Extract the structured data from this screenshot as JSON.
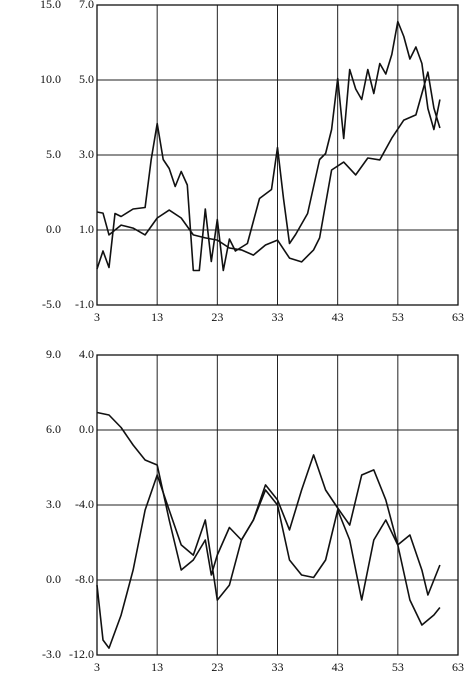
{
  "chart_data": [
    {
      "type": "line",
      "xlim": [
        3,
        63
      ],
      "xticks": [
        3,
        13,
        23,
        33,
        43,
        53,
        63
      ],
      "ylim": [
        -5,
        15
      ],
      "yticks": [
        {
          "value": -5,
          "label": "-5.0"
        },
        {
          "value": 0,
          "label": "0.0"
        },
        {
          "value": 5,
          "label": "5.0"
        },
        {
          "value": 10,
          "label": "10.0"
        },
        {
          "value": 15,
          "label": "15.0"
        }
      ],
      "y2lim": [
        -1,
        7
      ],
      "y2ticks": [
        {
          "value": -1,
          "label": "-1.0"
        },
        {
          "value": 1,
          "label": "1.0"
        },
        {
          "value": 3,
          "label": "3.0"
        },
        {
          "value": 5,
          "label": "5.0"
        },
        {
          "value": 7,
          "label": "7.0"
        }
      ],
      "grid": true,
      "series": [
        {
          "color": "#111111",
          "x": [
            3,
            4,
            5,
            6,
            7,
            9,
            11,
            12,
            13,
            14,
            15,
            16,
            17,
            18,
            19,
            20,
            21,
            22,
            23,
            24,
            25,
            26,
            28,
            30,
            32,
            33,
            34,
            35,
            36,
            38,
            40,
            41,
            42,
            43,
            44,
            45,
            46,
            47,
            48,
            49,
            50,
            51,
            52,
            53,
            54,
            55,
            56,
            57,
            58,
            59,
            60
          ],
          "values": [
            -2.6,
            -1.4,
            -2.5,
            1.1,
            0.9,
            1.4,
            1.5,
            4.7,
            7.1,
            4.7,
            4.1,
            2.9,
            3.9,
            3.0,
            -2.7,
            -2.7,
            1.4,
            -2.1,
            0.7,
            -2.7,
            -0.6,
            -1.4,
            -0.9,
            2.1,
            2.7,
            5.5,
            2.1,
            -0.9,
            -0.3,
            1.1,
            4.7,
            5.1,
            6.7,
            10.1,
            6.1,
            10.7,
            9.4,
            8.7,
            10.7,
            9.1,
            11.1,
            10.4,
            11.7,
            13.9,
            12.9,
            11.4,
            12.2,
            11.1,
            8.1,
            6.7,
            8.7
          ]
        },
        {
          "color": "#111111",
          "axis": "y2",
          "x": [
            3,
            4,
            5,
            7,
            9,
            11,
            13,
            15,
            17,
            19,
            21,
            23,
            25,
            27,
            29,
            31,
            33,
            35,
            37,
            39,
            40,
            42,
            44,
            46,
            48,
            50,
            52,
            54,
            56,
            58,
            59,
            60
          ],
          "values": [
            1.48,
            1.45,
            0.87,
            1.13,
            1.05,
            0.87,
            1.32,
            1.53,
            1.32,
            0.87,
            0.79,
            0.73,
            0.52,
            0.47,
            0.33,
            0.6,
            0.73,
            0.25,
            0.15,
            0.47,
            0.79,
            2.6,
            2.81,
            2.47,
            2.92,
            2.87,
            3.45,
            3.93,
            4.07,
            5.21,
            4.25,
            3.72
          ]
        }
      ]
    },
    {
      "type": "line",
      "xlim": [
        3,
        63
      ],
      "xticks": [
        3,
        13,
        23,
        33,
        43,
        53,
        63
      ],
      "ylim": [
        -3,
        9
      ],
      "yticks": [
        {
          "value": -3,
          "label": "-3.0"
        },
        {
          "value": 0,
          "label": "0.0"
        },
        {
          "value": 3,
          "label": "3.0"
        },
        {
          "value": 6,
          "label": "6.0"
        },
        {
          "value": 9,
          "label": "9.0"
        }
      ],
      "y2lim": [
        -12,
        4
      ],
      "y2ticks": [
        {
          "value": -12,
          "label": "-12.0"
        },
        {
          "value": -8,
          "label": "-8.0"
        },
        {
          "value": -4,
          "label": "-4.0"
        },
        {
          "value": 0,
          "label": "0.0"
        },
        {
          "value": 4,
          "label": "4.0"
        }
      ],
      "grid": true,
      "series": [
        {
          "color": "#111111",
          "x": [
            3,
            5,
            7,
            9,
            11,
            13,
            15,
            17,
            19,
            21,
            22,
            23,
            25,
            27,
            29,
            31,
            33,
            35,
            37,
            39,
            41,
            43,
            45,
            47,
            49,
            51,
            53,
            55,
            57,
            59,
            60
          ],
          "values": [
            6.7,
            6.6,
            6.1,
            5.4,
            4.8,
            4.6,
            2.4,
            0.4,
            0.8,
            1.6,
            0.2,
            1.0,
            2.1,
            1.6,
            2.4,
            3.6,
            3.0,
            0.8,
            0.2,
            0.1,
            0.8,
            2.8,
            1.6,
            -0.8,
            1.6,
            2.4,
            1.4,
            -0.8,
            -1.8,
            -1.4,
            -1.1
          ]
        },
        {
          "color": "#111111",
          "axis": "y2",
          "x": [
            3,
            4,
            5,
            7,
            9,
            11,
            13,
            15,
            17,
            19,
            21,
            23,
            25,
            27,
            29,
            31,
            33,
            35,
            37,
            39,
            41,
            43,
            45,
            47,
            49,
            51,
            53,
            55,
            57,
            58,
            60
          ],
          "values": [
            -8.27,
            -11.2,
            -11.63,
            -9.87,
            -7.47,
            -4.27,
            -2.4,
            -4.27,
            -6.13,
            -6.67,
            -4.8,
            -9.07,
            -8.27,
            -5.87,
            -4.8,
            -2.93,
            -3.73,
            -5.33,
            -3.2,
            -1.33,
            -3.2,
            -4.16,
            -5.07,
            -2.4,
            -2.13,
            -3.73,
            -6.13,
            -5.6,
            -7.47,
            -8.8,
            -7.2
          ]
        }
      ]
    }
  ]
}
